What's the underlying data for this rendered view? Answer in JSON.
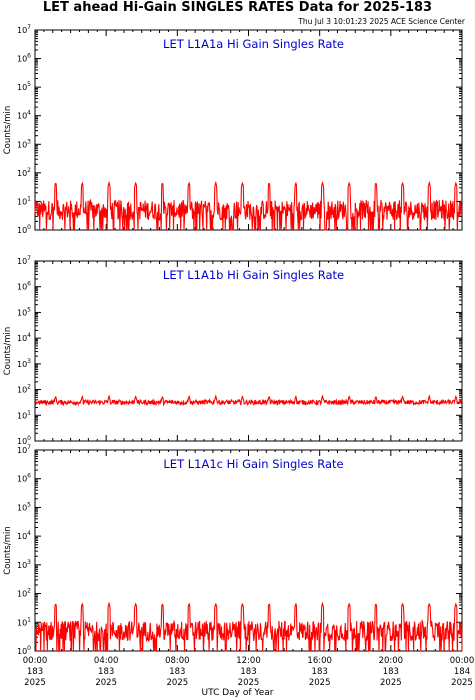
{
  "page": {
    "title": "LET ahead Hi-Gain SINGLES RATES Data for 2025-183",
    "timestamp": "Thu Jul  3 10:01:23 2025 ACE Science Center",
    "xlabel": "UTC Day of Year"
  },
  "colors": {
    "series": "#ff0000",
    "panel_title": "#0000cc",
    "axes": "#000000"
  },
  "chart_data": [
    {
      "type": "line",
      "title": "LET L1A1a Hi Gain Singles Rate",
      "ylabel": "Counts/min",
      "yscale": "log",
      "ylim": [
        1,
        10000000
      ],
      "xlim": [
        0,
        24
      ],
      "x_units": "hours UTC",
      "series": [
        {
          "baseline": 5,
          "spike": 45,
          "spike_period_hours": 1.5,
          "noise": "high"
        }
      ]
    },
    {
      "type": "line",
      "title": "LET L1A1b Hi Gain Singles Rate",
      "ylabel": "Counts/min",
      "yscale": "log",
      "ylim": [
        1,
        10000000
      ],
      "xlim": [
        0,
        24
      ],
      "x_units": "hours UTC",
      "series": [
        {
          "baseline": 32,
          "spike": 55,
          "spike_period_hours": 1.5,
          "noise": "low"
        }
      ]
    },
    {
      "type": "line",
      "title": "LET L1A1c Hi Gain Singles Rate",
      "ylabel": "Counts/min",
      "yscale": "log",
      "ylim": [
        1,
        10000000
      ],
      "xlim": [
        0,
        24
      ],
      "x_units": "hours UTC",
      "series": [
        {
          "baseline": 5,
          "spike": 45,
          "spike_period_hours": 1.5,
          "noise": "high"
        }
      ]
    }
  ],
  "x_ticks": [
    {
      "hour": 0,
      "time": "00:00",
      "doy": "183",
      "year": "2025"
    },
    {
      "hour": 4,
      "time": "04:00",
      "doy": "183",
      "year": "2025"
    },
    {
      "hour": 8,
      "time": "08:00",
      "doy": "183",
      "year": "2025"
    },
    {
      "hour": 12,
      "time": "12:00",
      "doy": "183",
      "year": "2025"
    },
    {
      "hour": 16,
      "time": "16:00",
      "doy": "183",
      "year": "2025"
    },
    {
      "hour": 20,
      "time": "20:00",
      "doy": "183",
      "year": "2025"
    },
    {
      "hour": 24,
      "time": "00:00",
      "doy": "184",
      "year": "2025"
    }
  ]
}
